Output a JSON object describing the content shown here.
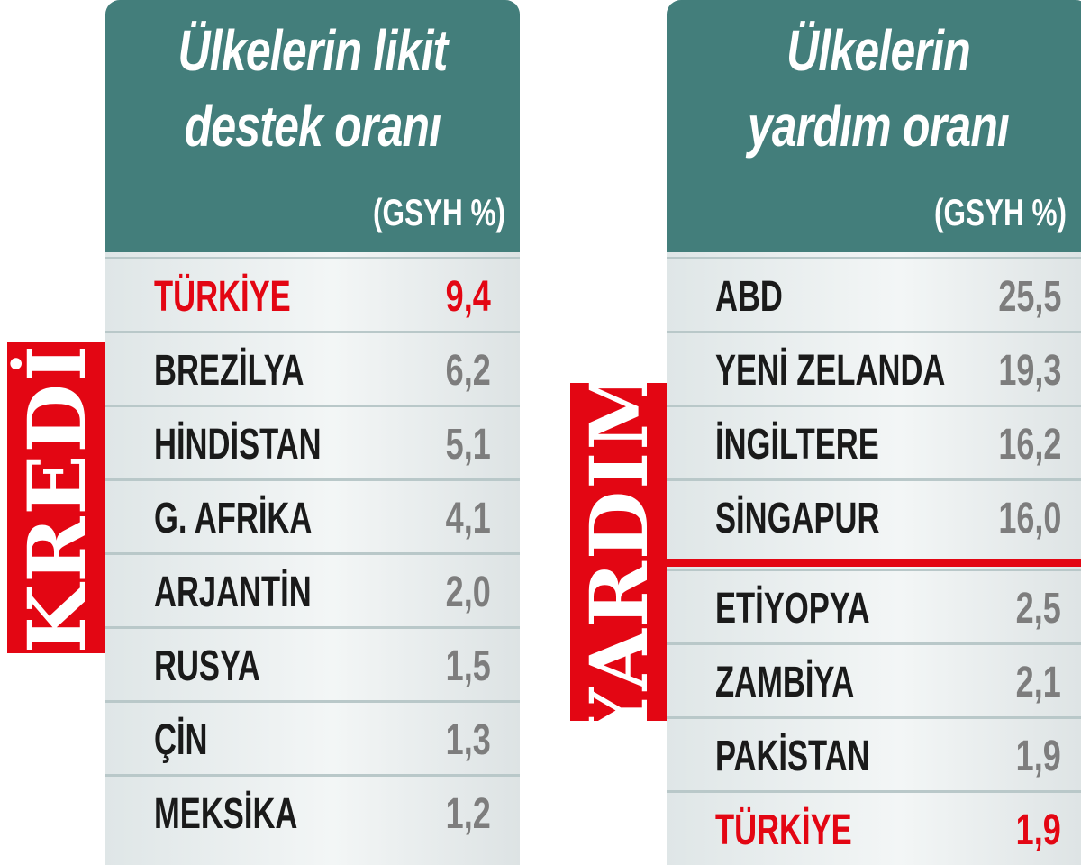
{
  "colors": {
    "header": "#437e7b",
    "highlight": "#e30613",
    "value": "#7d7d7d"
  },
  "chart_data": [
    {
      "type": "table",
      "label": "KREDİ",
      "title_line1": "Ülkelerin likit",
      "title_line2": "destek oranı",
      "unit": "(GSYH %)",
      "rows": [
        {
          "country": "TÜRKİYE",
          "value": "9,4",
          "highlight": true
        },
        {
          "country": "BREZİLYA",
          "value": "6,2"
        },
        {
          "country": "HİNDİSTAN",
          "value": "5,1"
        },
        {
          "country": "G. AFRİKA",
          "value": "4,1"
        },
        {
          "country": "ARJANTİN",
          "value": "2,0"
        },
        {
          "country": "RUSYA",
          "value": "1,5"
        },
        {
          "country": "ÇİN",
          "value": "1,3"
        },
        {
          "country": "MEKSİKA",
          "value": "1,2"
        }
      ]
    },
    {
      "type": "table",
      "label": "YARDIM",
      "title_line1": "Ülkelerin",
      "title_line2": "yardım oranı",
      "unit": "(GSYH %)",
      "rows": [
        {
          "country": "ABD",
          "value": "25,5"
        },
        {
          "country": "YENİ ZELANDA",
          "value": "19,3"
        },
        {
          "country": "İNGİLTERE",
          "value": "16,2"
        },
        {
          "country": "SİNGAPUR",
          "value": "16,0"
        },
        {
          "country": "ETİYOPYA",
          "value": "2,5"
        },
        {
          "country": "ZAMBİYA",
          "value": "2,1"
        },
        {
          "country": "PAKİSTAN",
          "value": "1,9"
        },
        {
          "country": "TÜRKİYE",
          "value": "1,9",
          "highlight": true
        }
      ]
    }
  ]
}
